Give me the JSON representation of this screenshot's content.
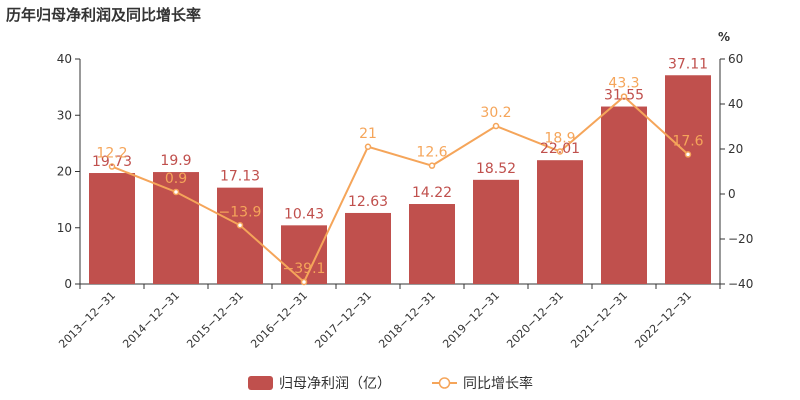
{
  "chart_data": {
    "type": "bar",
    "title": "历年归母净利润及同比增长率",
    "categories": [
      "2013-12-31",
      "2014-12-31",
      "2015-12-31",
      "2016-12-31",
      "2017-12-31",
      "2018-12-31",
      "2019-12-31",
      "2020-12-31",
      "2021-12-31",
      "2022-12-31"
    ],
    "y_left": {
      "ticks": [
        0,
        10,
        20,
        30,
        40
      ],
      "ylim": [
        0,
        40
      ]
    },
    "y_right": {
      "unit": "%",
      "ticks": [
        -40,
        -20,
        0,
        20,
        40,
        60
      ],
      "ylim": [
        -40,
        60
      ]
    },
    "series": [
      {
        "name": "归母净利润（亿）",
        "type": "bar",
        "axis": "left",
        "color": "#c0504d",
        "values": [
          19.73,
          19.9,
          17.13,
          10.43,
          12.63,
          14.22,
          18.52,
          22.01,
          31.55,
          37.11
        ],
        "labels": [
          "19.73",
          "19.9",
          "17.13",
          "10.43",
          "12.63",
          "14.22",
          "18.52",
          "22.01",
          "31.55",
          "37.11"
        ]
      },
      {
        "name": "同比增长率",
        "type": "line",
        "axis": "right",
        "color": "#f5a55a",
        "values": [
          12.2,
          0.9,
          -13.9,
          -39.1,
          21,
          12.6,
          30.2,
          18.9,
          43.3,
          17.6
        ],
        "labels": [
          "12.2",
          "0.9",
          "-13.9",
          "-39.1",
          "21",
          "12.6",
          "30.2",
          "18.9",
          "43.3",
          "17.6"
        ]
      }
    ],
    "legend": {
      "position": "bottom-center",
      "items": [
        "归母净利润（亿）",
        "同比增长率"
      ]
    },
    "grid": false
  }
}
